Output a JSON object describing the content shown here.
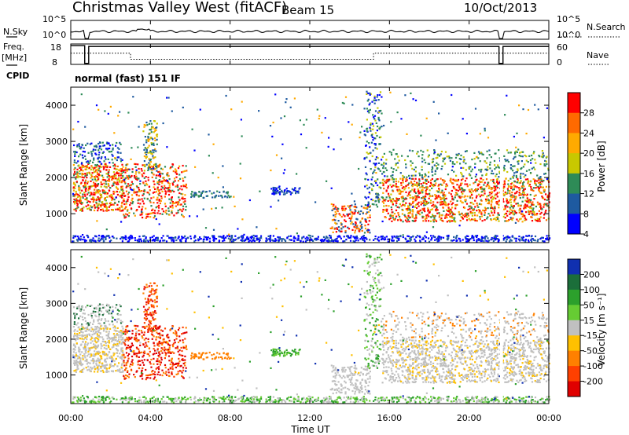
{
  "header": {
    "station": "Christmas Valley West (fitACF)",
    "beam": "Beam 15",
    "date": "10/Oct/2013"
  },
  "chart_data": [
    {
      "type": "line",
      "panel": "nsky",
      "left_label": "N.Sky",
      "right_label": "N.Search",
      "left_ticks": [
        "10^5",
        "10^0"
      ],
      "right_ticks": [
        "10^5",
        "10^0"
      ],
      "note": "sky noise vs time"
    },
    {
      "type": "line",
      "panel": "freq",
      "left_label_line1": "Freq.",
      "left_label_line2": "[MHz]",
      "right_label": "Nave",
      "left_ticks": [
        "18",
        "8"
      ],
      "right_ticks": [
        "60",
        "0"
      ],
      "freq_steps": [
        {
          "t0": 0.0,
          "t1": 0.7,
          "level": 0.92
        },
        {
          "t0": 0.7,
          "t1": 0.9,
          "level": 0.05
        },
        {
          "t0": 0.9,
          "t1": 21.5,
          "level": 0.88
        },
        {
          "t0": 21.5,
          "t1": 21.7,
          "level": 0.05
        },
        {
          "t0": 21.7,
          "t1": 24.0,
          "level": 0.88
        }
      ],
      "nave_steps": [
        {
          "t0": 0.0,
          "t1": 3.0,
          "level": 0.55
        },
        {
          "t0": 3.0,
          "t1": 15.2,
          "level": 0.25
        },
        {
          "t0": 15.2,
          "t1": 24.0,
          "level": 0.55
        }
      ]
    },
    {
      "type": "heatmap",
      "panel": "power",
      "cpid_label": "CPID",
      "cpid_value": "normal (fast) 151 IF",
      "ylabel": "Slant Range [km]",
      "ylim": [
        200,
        4500
      ],
      "yticks": [
        1000,
        2000,
        3000,
        4000
      ],
      "colorbar_label": "Power [dB]",
      "colorbar_ticks": [
        "28",
        "24",
        "20",
        "16",
        "12",
        "8",
        "4"
      ],
      "colorbar_colors": [
        "#ff0000",
        "#ff6a00",
        "#ffaa00",
        "#c8c800",
        "#2e8b57",
        "#1e5aa0",
        "#0000ff"
      ]
    },
    {
      "type": "heatmap",
      "panel": "velocity",
      "ylabel": "Slant Range [km]",
      "ylim": [
        200,
        4500
      ],
      "yticks": [
        1000,
        2000,
        3000,
        4000
      ],
      "colorbar_label": "Velocity [m s⁻¹]",
      "colorbar_ticks": [
        "200",
        "100",
        "50",
        "15",
        "-15",
        "-50",
        "-100",
        "-200"
      ],
      "colorbar_colors": [
        "#1030b0",
        "#1b6e3a",
        "#2ca02c",
        "#66cc33",
        "#c0c0c0",
        "#ffc000",
        "#ff8000",
        "#ff4000",
        "#e00000"
      ],
      "xlabel": "Time UT",
      "xlim": [
        0,
        24
      ],
      "xticks": [
        "00:00",
        "04:00",
        "08:00",
        "12:00",
        "16:00",
        "20:00",
        "00:00"
      ]
    }
  ]
}
